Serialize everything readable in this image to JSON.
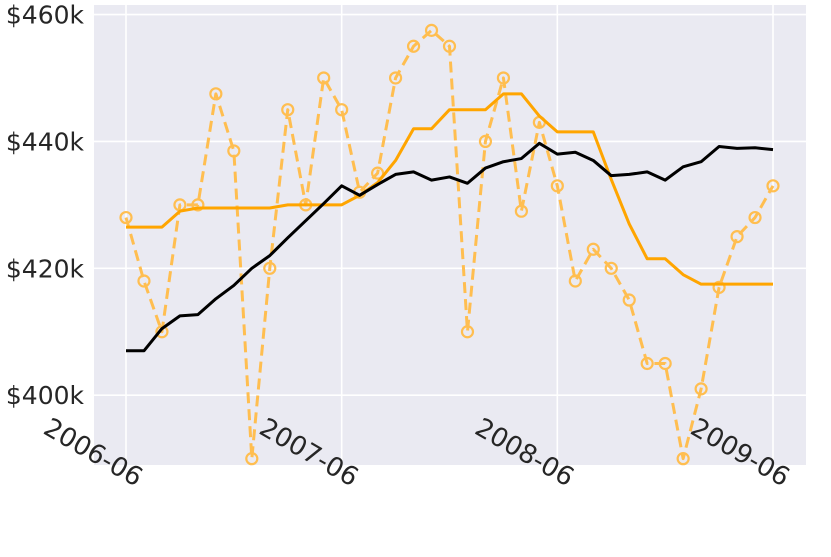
{
  "chart_data": {
    "type": "line",
    "x_axis": {
      "type": "date",
      "ticks": [
        "2006-06",
        "2007-06",
        "2008-06",
        "2009-06"
      ],
      "range": [
        "2006-06",
        "2009-06"
      ]
    },
    "y_axis": {
      "ticks": [
        400000,
        420000,
        440000,
        460000
      ],
      "tick_labels": [
        "$400k",
        "$420k",
        "$440k",
        "$460k"
      ],
      "range": [
        389000,
        461500
      ]
    },
    "grid": true,
    "background": "#eaeaf2",
    "series": [
      {
        "style": "dashed-with-circles",
        "color": "#ffbe50",
        "x": [
          "2006-06",
          "2006-07",
          "2006-08",
          "2006-09",
          "2006-10",
          "2006-11",
          "2006-12",
          "2007-01",
          "2007-02",
          "2007-03",
          "2007-04",
          "2007-05",
          "2007-06",
          "2007-07",
          "2007-08",
          "2007-09",
          "2007-10",
          "2007-11",
          "2007-12",
          "2008-01",
          "2008-02",
          "2008-03",
          "2008-04",
          "2008-05",
          "2008-06",
          "2008-07",
          "2008-08",
          "2008-09",
          "2008-10",
          "2008-11",
          "2008-12",
          "2009-01",
          "2009-02",
          "2009-03",
          "2009-04",
          "2009-05",
          "2009-06"
        ],
        "values": [
          428000,
          418000,
          410000,
          430000,
          430000,
          447500,
          438500,
          390000,
          420000,
          445000,
          430000,
          450000,
          445000,
          432000,
          435000,
          450000,
          455000,
          457500,
          455000,
          410000,
          440000,
          450000,
          429000,
          443000,
          433000,
          418000,
          423000,
          420000,
          415000,
          405000,
          405000,
          390000,
          401000,
          417000,
          425000,
          428000,
          433000
        ]
      },
      {
        "style": "solid",
        "color": "#ffa500",
        "x": [
          "2006-06",
          "2006-07",
          "2006-08",
          "2006-09",
          "2006-10",
          "2006-11",
          "2006-12",
          "2007-01",
          "2007-02",
          "2007-03",
          "2007-04",
          "2007-05",
          "2007-06",
          "2007-07",
          "2007-08",
          "2007-09",
          "2007-10",
          "2007-11",
          "2007-12",
          "2008-01",
          "2008-02",
          "2008-03",
          "2008-04",
          "2008-05",
          "2008-06",
          "2008-07",
          "2008-08",
          "2008-09",
          "2008-10",
          "2008-11",
          "2008-12",
          "2009-01",
          "2009-02",
          "2009-03",
          "2009-04",
          "2009-05",
          "2009-06"
        ],
        "values": [
          426500,
          426500,
          426500,
          429000,
          429500,
          429500,
          429500,
          429500,
          429500,
          430000,
          430000,
          430000,
          430000,
          431500,
          433500,
          437000,
          442000,
          442000,
          445000,
          445000,
          445000,
          447500,
          447500,
          444000,
          441500,
          441500,
          441500,
          434000,
          427000,
          421500,
          421500,
          419000,
          417500,
          417500,
          417500,
          417500,
          417500
        ]
      },
      {
        "style": "solid",
        "color": "#000000",
        "x": [
          "2006-06",
          "2006-07",
          "2006-08",
          "2006-09",
          "2006-10",
          "2006-11",
          "2006-12",
          "2007-01",
          "2007-02",
          "2007-03",
          "2007-04",
          "2007-05",
          "2007-06",
          "2007-07",
          "2007-08",
          "2007-09",
          "2007-10",
          "2007-11",
          "2007-12",
          "2008-01",
          "2008-02",
          "2008-03",
          "2008-04",
          "2008-05",
          "2008-06",
          "2008-07",
          "2008-08",
          "2008-09",
          "2008-10",
          "2008-11",
          "2008-12",
          "2009-01",
          "2009-02",
          "2009-03",
          "2009-04",
          "2009-05",
          "2009-06"
        ],
        "values": [
          407000,
          407000,
          410500,
          412500,
          412700,
          415200,
          417300,
          420000,
          422000,
          424800,
          427500,
          430200,
          433000,
          431500,
          433200,
          434800,
          435200,
          433900,
          434400,
          433400,
          435800,
          436800,
          437300,
          439700,
          438000,
          438300,
          437000,
          434600,
          434800,
          435200,
          433900,
          436000,
          436800,
          439200,
          438900,
          439000,
          438700
        ]
      }
    ]
  }
}
